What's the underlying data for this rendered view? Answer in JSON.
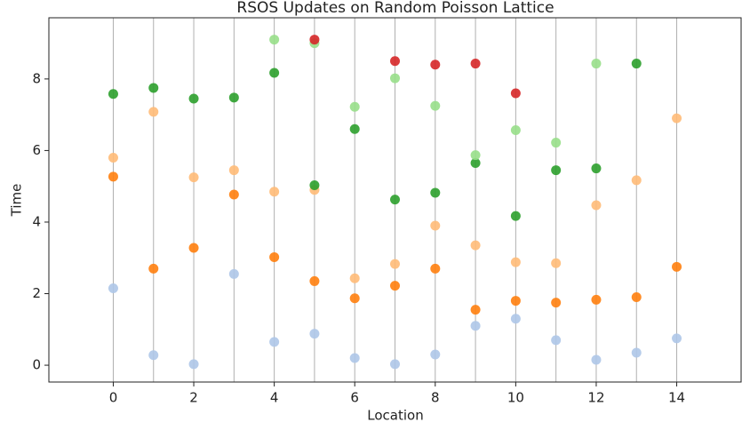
{
  "chart_data": {
    "type": "scatter",
    "title": "RSOS Updates on Random Poisson Lattice",
    "x_label": "Location",
    "y_label": "Time",
    "xlim": [
      -1.6,
      15.6
    ],
    "ylim": [
      -0.47,
      9.71
    ],
    "xticks": [
      0,
      2,
      4,
      6,
      8,
      10,
      12,
      14
    ],
    "yticks": [
      0,
      2,
      4,
      6,
      8
    ],
    "series": [
      {
        "color": "#aec7e8",
        "x": [
          0,
          1,
          2,
          3,
          4,
          5,
          6,
          7,
          8,
          9,
          10,
          11,
          12,
          13,
          14
        ],
        "values": [
          2.15,
          0.28,
          0.03,
          2.55,
          0.65,
          0.88,
          0.2,
          0.03,
          0.3,
          1.1,
          1.3,
          0.7,
          0.15,
          0.35,
          0.75
        ]
      },
      {
        "color": "#ff7f0e",
        "x": [
          0,
          1,
          2,
          3,
          4,
          5,
          6,
          7,
          8,
          9,
          10,
          11,
          12,
          13,
          14
        ],
        "values": [
          5.27,
          2.7,
          3.28,
          4.77,
          3.02,
          2.35,
          1.87,
          2.22,
          2.7,
          1.55,
          1.8,
          1.75,
          1.83,
          1.9,
          2.75
        ]
      },
      {
        "color": "#ffbb78",
        "x": [
          0,
          1,
          2,
          3,
          4,
          5,
          6,
          7,
          8,
          9,
          10,
          11,
          12,
          13,
          14
        ],
        "values": [
          5.8,
          7.08,
          5.25,
          5.45,
          4.85,
          4.9,
          2.43,
          2.83,
          3.9,
          3.35,
          2.88,
          2.85,
          4.47,
          5.17,
          6.9
        ]
      },
      {
        "color": "#2ca02c",
        "x": [
          0,
          1,
          2,
          3,
          4,
          5,
          6,
          7,
          8,
          9,
          10,
          11,
          12,
          13
        ],
        "values": [
          7.58,
          7.75,
          7.45,
          7.48,
          8.17,
          5.03,
          6.6,
          4.63,
          4.82,
          5.65,
          4.17,
          5.45,
          5.5,
          8.43
        ]
      },
      {
        "color": "#98df8a",
        "x": [
          4,
          5,
          6,
          7,
          8,
          9,
          10,
          11,
          12
        ],
        "values": [
          9.1,
          9.0,
          7.22,
          8.02,
          7.25,
          5.87,
          6.57,
          6.22,
          8.43
        ]
      },
      {
        "color": "#d62728",
        "x": [
          5,
          7,
          8,
          9,
          10
        ],
        "values": [
          9.1,
          8.5,
          8.4,
          8.43,
          7.6
        ]
      }
    ]
  }
}
